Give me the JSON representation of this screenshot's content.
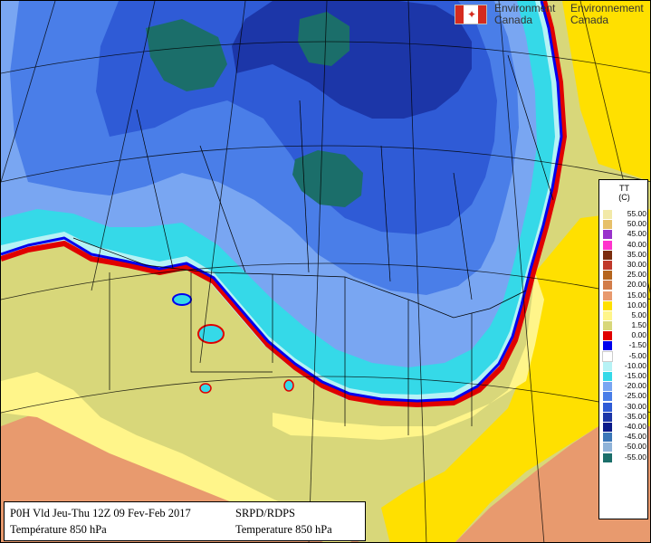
{
  "header": {
    "org_en": "Environment",
    "org_en2": "Canada",
    "org_fr": "Environnement",
    "org_fr2": "Canada",
    "flag_icon": "canada-flag-icon"
  },
  "caption": {
    "line1_left": "P0H Vld Jeu-Thu 12Z 09 Fev-Feb 2017",
    "line2_left": "Température 850 hPa",
    "line1_right": "SRPD/RDPS",
    "line2_right": "Temperature 850 hPa"
  },
  "legend": {
    "title": "TT",
    "unit": "(C)",
    "entries": [
      {
        "label": "55.00",
        "color": "#f2e9a8"
      },
      {
        "label": "50.00",
        "color": "#e6c06a"
      },
      {
        "label": "45.00",
        "color": "#9932cc"
      },
      {
        "label": "40.00",
        "color": "#ff33cc"
      },
      {
        "label": "35.00",
        "color": "#7b2d0e"
      },
      {
        "label": "30.00",
        "color": "#c0392b"
      },
      {
        "label": "25.00",
        "color": "#b5651d"
      },
      {
        "label": "20.00",
        "color": "#d27d4a"
      },
      {
        "label": "15.00",
        "color": "#e89a6e"
      },
      {
        "label": "10.00",
        "color": "#ffe000"
      },
      {
        "label": "5.00",
        "color": "#fff58a"
      },
      {
        "label": "1.50",
        "color": "#d8d77a"
      },
      {
        "label": "0.00",
        "color": "#e00000"
      },
      {
        "label": "-1.50",
        "color": "#0000ee"
      },
      {
        "label": "-5.00",
        "color": "#ffffff"
      },
      {
        "label": "-10.00",
        "color": "#b6f2f5"
      },
      {
        "label": "-15.00",
        "color": "#35d9e8"
      },
      {
        "label": "-20.00",
        "color": "#79a6f2"
      },
      {
        "label": "-25.00",
        "color": "#4a7ee8"
      },
      {
        "label": "-30.00",
        "color": "#2f5bd6"
      },
      {
        "label": "-35.00",
        "color": "#1c36a8"
      },
      {
        "label": "-40.00",
        "color": "#0a1a8a"
      },
      {
        "label": "-45.00",
        "color": "#3b77b8"
      },
      {
        "label": "-50.00",
        "color": "#8fb3d8"
      },
      {
        "label": "-55.00",
        "color": "#1b6e6a"
      }
    ]
  },
  "colors": {
    "frost": "#35d9e8",
    "cold_light": "#79a6f2",
    "cold_mid": "#4a7ee8",
    "cold_deep": "#2f5bd6",
    "cold_very": "#1c36a8",
    "polar_teal": "#1b6e6a",
    "freezing_line": "#e00000",
    "boundary": "#0000ee",
    "warm_olive": "#d8d77a",
    "warm_pale": "#fff58a",
    "warm_yellow": "#ffe000",
    "warm_orange": "#e89a6e",
    "ice_pale": "#b6f2f5"
  }
}
